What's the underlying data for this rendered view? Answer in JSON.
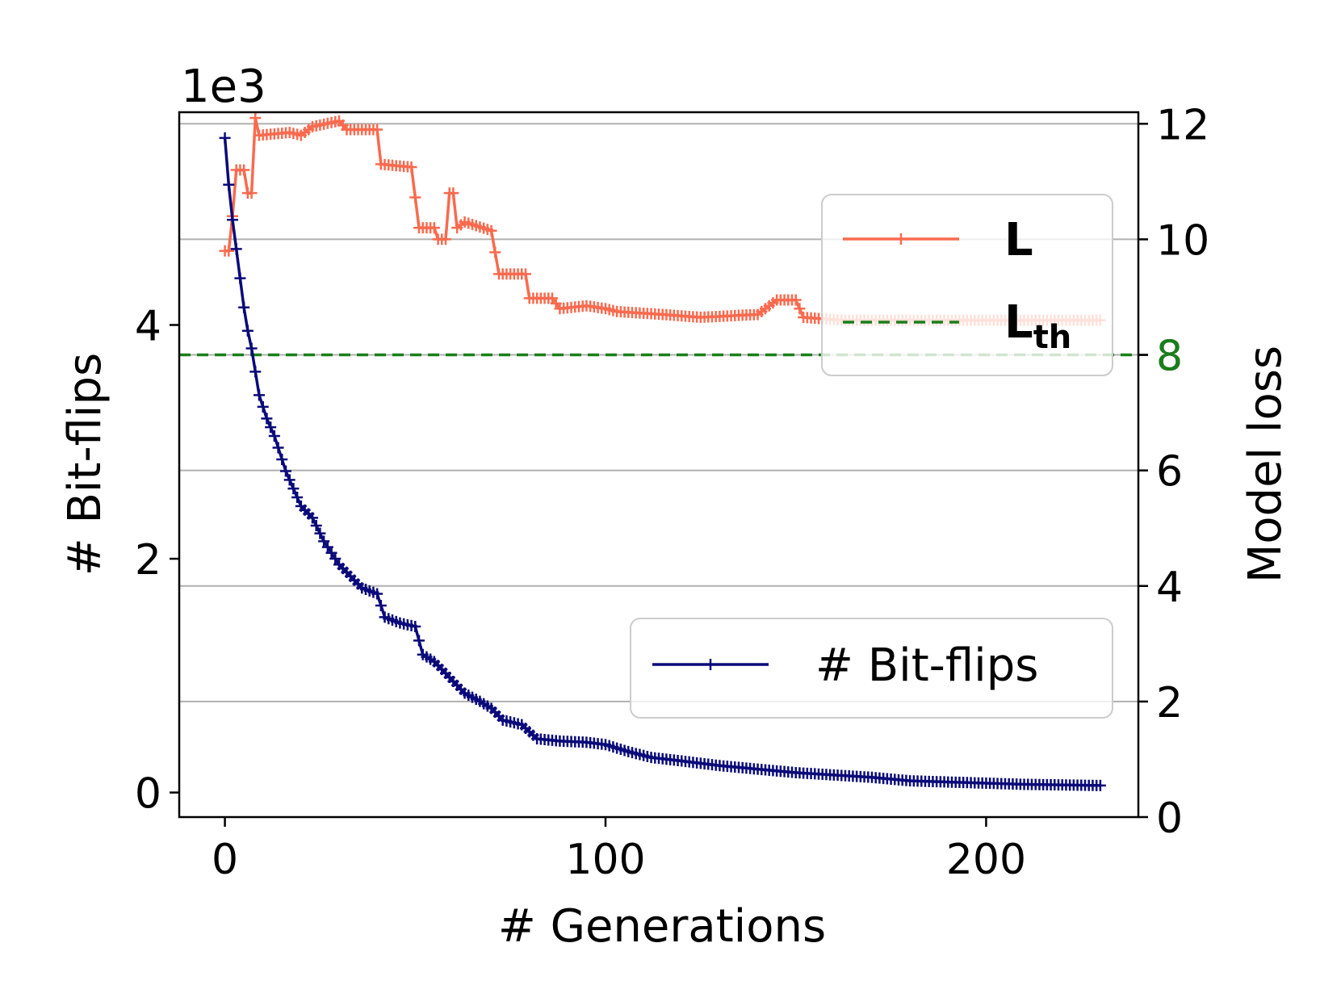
{
  "chart_data": {
    "type": "line",
    "xlabel": "# Generations",
    "ylabel_left": "# Bit-flips",
    "ylabel_right": "Model loss",
    "left_scale_text": "1e3",
    "x_ticks": [
      "0",
      "100",
      "200"
    ],
    "x_tick_values": [
      0,
      100,
      200
    ],
    "xlim": [
      -12,
      240
    ],
    "left_ticks": [
      "0",
      "2",
      "4"
    ],
    "left_tick_values": [
      0,
      2,
      4
    ],
    "left_ylim": [
      -0.21,
      5.82
    ],
    "right_ticks": [
      "0",
      "2",
      "4",
      "6",
      "8",
      "10",
      "12"
    ],
    "right_tick_values": [
      0,
      2,
      4,
      6,
      8,
      10,
      12
    ],
    "right_ylim": [
      0,
      12.2
    ],
    "grid": "horizontal, right axis",
    "colors": {
      "loss": "#FA6A4E",
      "bitflips": "#0A0A7A",
      "threshold": "#1A7F1A",
      "grid": "#B0B0B0",
      "highlight_tick": "#1A7F1A"
    },
    "threshold": {
      "name_main": "L",
      "name_sub": "th",
      "value": 8,
      "tick_label": "8"
    },
    "series": [
      {
        "name": "L",
        "axis": "right",
        "marker": "+",
        "points": [
          [
            0,
            9.8
          ],
          [
            1,
            9.8
          ],
          [
            2,
            10.4
          ],
          [
            3,
            11.2
          ],
          [
            5,
            11.2
          ],
          [
            5.5,
            10.8
          ],
          [
            7,
            10.8
          ],
          [
            8,
            12.1
          ],
          [
            9,
            11.8
          ],
          [
            17,
            11.85
          ],
          [
            20,
            11.8
          ],
          [
            23,
            11.95
          ],
          [
            30,
            12.05
          ],
          [
            32,
            11.9
          ],
          [
            40,
            11.9
          ],
          [
            41,
            11.3
          ],
          [
            49,
            11.25
          ],
          [
            51,
            10.2
          ],
          [
            55,
            10.2
          ],
          [
            56,
            10.0
          ],
          [
            58,
            10.0
          ],
          [
            58.5,
            10.8
          ],
          [
            60,
            10.8
          ],
          [
            61,
            10.2
          ],
          [
            63,
            10.3
          ],
          [
            70,
            10.15
          ],
          [
            72,
            9.4
          ],
          [
            79,
            9.4
          ],
          [
            80,
            8.98
          ],
          [
            86,
            8.98
          ],
          [
            88,
            8.8
          ],
          [
            95,
            8.85
          ],
          [
            100,
            8.8
          ],
          [
            103,
            8.75
          ],
          [
            115,
            8.7
          ],
          [
            125,
            8.65
          ],
          [
            140,
            8.7
          ],
          [
            145,
            8.95
          ],
          [
            150,
            8.95
          ],
          [
            152,
            8.65
          ],
          [
            162,
            8.6
          ],
          [
            230,
            8.6
          ]
        ]
      },
      {
        "name": "# Bit-flips",
        "axis": "left",
        "marker": "+",
        "points": [
          [
            0,
            5.6
          ],
          [
            1,
            5.2
          ],
          [
            2,
            4.9
          ],
          [
            3,
            4.65
          ],
          [
            4,
            4.4
          ],
          [
            5,
            4.15
          ],
          [
            6,
            3.95
          ],
          [
            7,
            3.8
          ],
          [
            8,
            3.6
          ],
          [
            9,
            3.4
          ],
          [
            11,
            3.2
          ],
          [
            13,
            3.05
          ],
          [
            16,
            2.75
          ],
          [
            18,
            2.6
          ],
          [
            20,
            2.45
          ],
          [
            23,
            2.35
          ],
          [
            26,
            2.15
          ],
          [
            28,
            2.05
          ],
          [
            30,
            1.95
          ],
          [
            33,
            1.85
          ],
          [
            36,
            1.75
          ],
          [
            40,
            1.7
          ],
          [
            42,
            1.5
          ],
          [
            46,
            1.45
          ],
          [
            50,
            1.42
          ],
          [
            52,
            1.18
          ],
          [
            55,
            1.12
          ],
          [
            58,
            1.02
          ],
          [
            60,
            0.95
          ],
          [
            63,
            0.85
          ],
          [
            67,
            0.78
          ],
          [
            70,
            0.72
          ],
          [
            73,
            0.62
          ],
          [
            78,
            0.58
          ],
          [
            82,
            0.46
          ],
          [
            88,
            0.44
          ],
          [
            95,
            0.43
          ],
          [
            100,
            0.41
          ],
          [
            106,
            0.35
          ],
          [
            112,
            0.3
          ],
          [
            120,
            0.27
          ],
          [
            130,
            0.23
          ],
          [
            140,
            0.2
          ],
          [
            150,
            0.17
          ],
          [
            160,
            0.15
          ],
          [
            170,
            0.13
          ],
          [
            180,
            0.1
          ],
          [
            190,
            0.09
          ],
          [
            200,
            0.08
          ],
          [
            210,
            0.07
          ],
          [
            220,
            0.065
          ],
          [
            230,
            0.06
          ]
        ]
      }
    ],
    "legend_loss": {
      "position": "upper-right",
      "entries": [
        "L",
        "L_th"
      ]
    },
    "legend_bitflips": {
      "position": "lower-right",
      "entries": [
        "# Bit-flips"
      ]
    }
  }
}
